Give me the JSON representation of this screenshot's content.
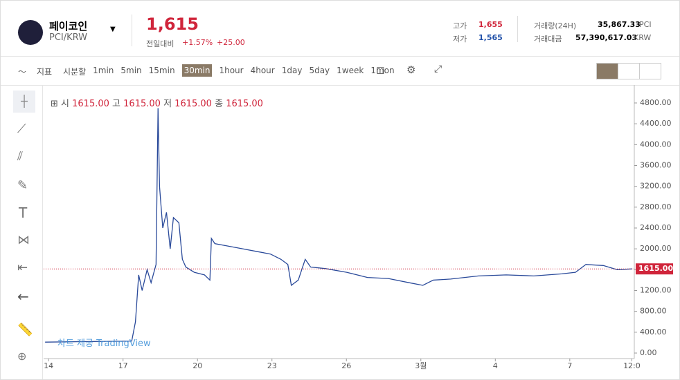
{
  "header": {
    "coin_name": "페이코인",
    "pair": "PCI/KRW",
    "price": "1,615",
    "change_label": "전일대비",
    "change_pct": "+1.57%",
    "change_abs": "+25.00",
    "high_label": "고가",
    "high": "1,655",
    "low_label": "저가",
    "low": "1,565",
    "volume_label": "거래량(24H)",
    "volume": "35,867.33",
    "volume_unit": "PCI",
    "amount_label": "거래대금",
    "amount": "57,390,617.03",
    "amount_unit": "KRW"
  },
  "toolbar": {
    "indicator": "지표",
    "intervals": [
      "시분할",
      "1min",
      "5min",
      "15min",
      "30min",
      "1hour",
      "4hour",
      "1day",
      "5day",
      "1week",
      "1mon"
    ],
    "active": "30min"
  },
  "ohlc": {
    "open_label": "시",
    "open": "1615.00",
    "high_label": "고",
    "high": "1615.00",
    "low_label": "저",
    "low": "1615.00",
    "close_label": "종",
    "close": "1615.00"
  },
  "watermark": "차트 제공 TradingView",
  "chart": {
    "type": "line",
    "color": "#2a4a9a",
    "x": [
      -0.14,
      3.35,
      3.5,
      3.63,
      3.77,
      3.97,
      4.13,
      4.33,
      4.41,
      4.47,
      4.6,
      4.75,
      4.9,
      5.03,
      5.25,
      5.39,
      5.53,
      5.87,
      6.28,
      6.5,
      6.56,
      6.7,
      7.26,
      7.82,
      8.38,
      8.94,
      9.36,
      9.64,
      9.78,
      10.06,
      10.34,
      10.56,
      11.17,
      12.01,
      12.85,
      13.69,
      14.53,
      15.08,
      15.5,
      16.2,
      17.32,
      18.44,
      19.55,
      20.67,
      21.23,
      21.65,
      22.35,
      22.91,
      23.52
    ],
    "values": [
      210,
      230,
      600,
      1500,
      1200,
      1600,
      1350,
      1700,
      4700,
      3200,
      2400,
      2700,
      2000,
      2600,
      2500,
      1800,
      1650,
      1550,
      1500,
      1400,
      2200,
      2100,
      2050,
      2000,
      1950,
      1900,
      1800,
      1700,
      1300,
      1400,
      1800,
      1650,
      1620,
      1550,
      1450,
      1430,
      1350,
      1300,
      1400,
      1420,
      1480,
      1500,
      1480,
      1520,
      1550,
      1700,
      1680,
      1600,
      1615
    ],
    "xlim": [
      -0.2,
      23.6
    ],
    "ylim": [
      -106,
      5065
    ],
    "xticks": [
      {
        "value": 0,
        "label": "14"
      },
      {
        "value": 3,
        "label": "17"
      },
      {
        "value": 6,
        "label": "20"
      },
      {
        "value": 9,
        "label": "23"
      },
      {
        "value": 12,
        "label": "26"
      },
      {
        "value": 15,
        "label": "3월"
      },
      {
        "value": 18,
        "label": "4"
      },
      {
        "value": 21,
        "label": "7"
      },
      {
        "value": 23.5,
        "label": "12:0"
      }
    ],
    "yticks": [
      {
        "value": 0,
        "label": "0.00"
      },
      {
        "value": 400,
        "label": "400.00"
      },
      {
        "value": 800,
        "label": "800.00"
      },
      {
        "value": 1200,
        "label": "1200.00"
      },
      {
        "value": 1600,
        "label": "1600.00"
      },
      {
        "value": 2000,
        "label": "2000.00"
      },
      {
        "value": 2400,
        "label": "2400.00"
      },
      {
        "value": 2800,
        "label": "2800.00"
      },
      {
        "value": 3200,
        "label": "3200.00"
      },
      {
        "value": 3600,
        "label": "3600.00"
      },
      {
        "value": 4000,
        "label": "4000.00"
      },
      {
        "value": 4400,
        "label": "4400.00"
      },
      {
        "value": 4800,
        "label": "4800.00"
      }
    ],
    "price_line": {
      "value": 1615,
      "label": "1615.00"
    }
  }
}
